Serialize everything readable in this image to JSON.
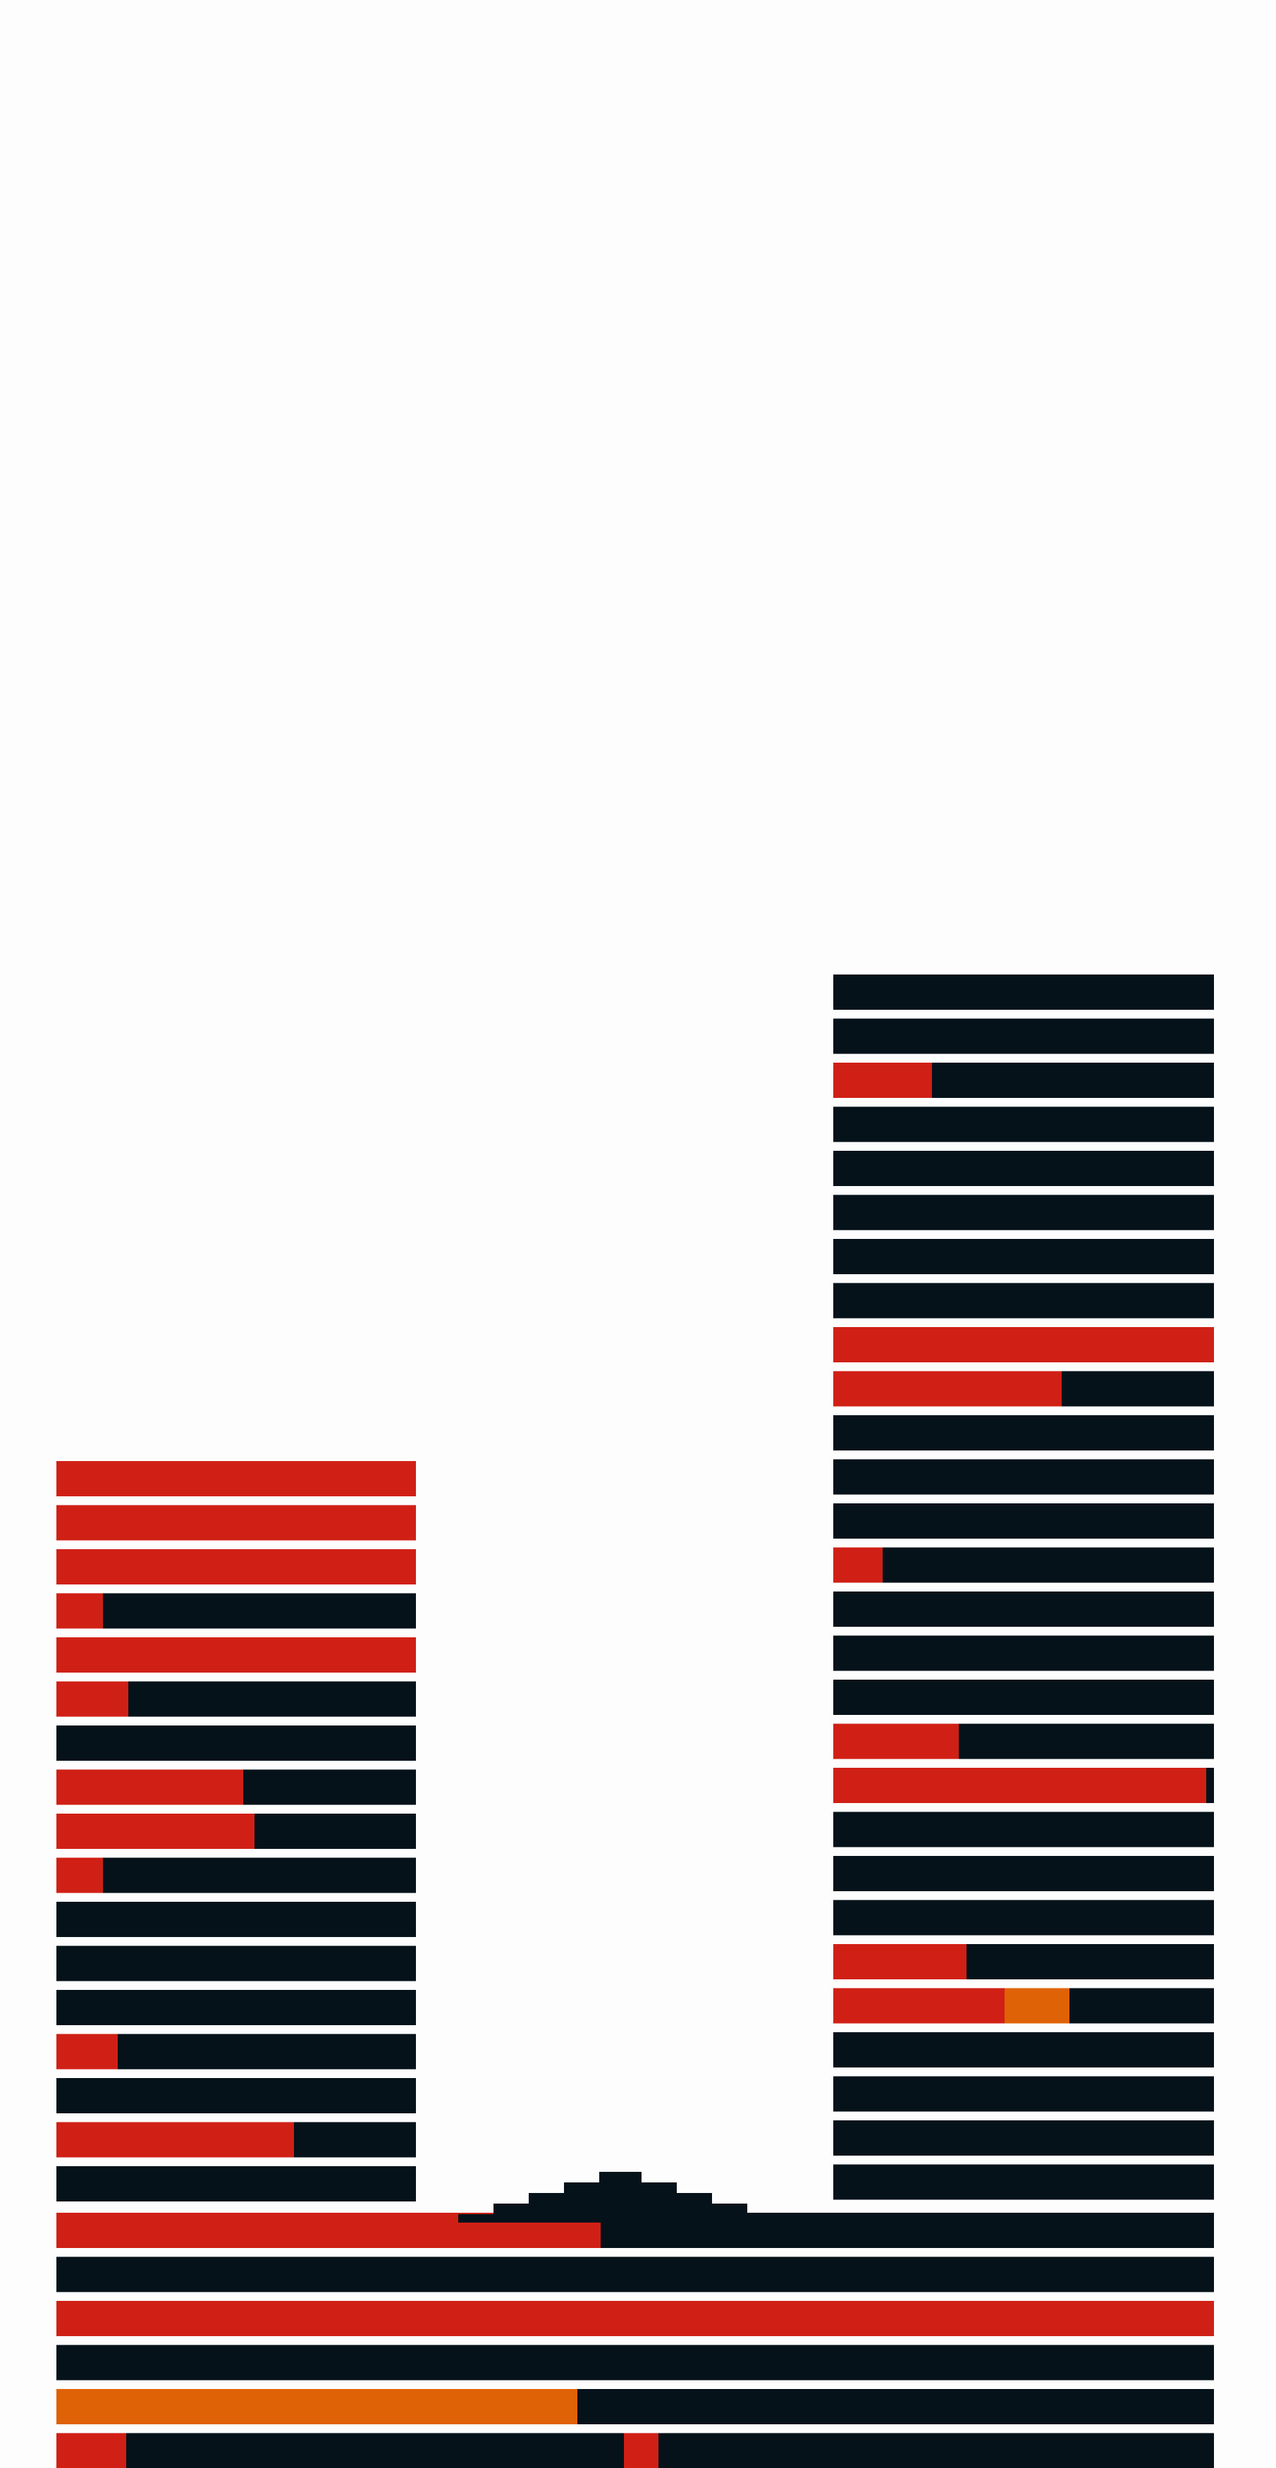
{
  "colors": {
    "background": "#fdfdfd",
    "bar": "#05121a",
    "red": "#d02016",
    "orange": "#e06206"
  },
  "left_tower": {
    "rows": [
      {
        "red": 1.0
      },
      {
        "red": 1.0
      },
      {
        "red": 1.0
      },
      {
        "red": 0.13
      },
      {
        "red": 1.0
      },
      {
        "red": 0.2
      },
      {
        "red": 0
      },
      {
        "red": 0.52
      },
      {
        "red": 0.55
      },
      {
        "red": 0.13
      },
      {
        "red": 0
      },
      {
        "red": 0
      },
      {
        "red": 0
      },
      {
        "red": 0.17
      },
      {
        "red": 0
      },
      {
        "red": 0.66
      },
      {
        "red": 0
      }
    ]
  },
  "right_tower": {
    "rows": [
      {
        "red": 0
      },
      {
        "red": 0
      },
      {
        "red": 0.26
      },
      {
        "red": 0
      },
      {
        "red": 0
      },
      {
        "red": 0
      },
      {
        "red": 0
      },
      {
        "red": 0
      },
      {
        "red": 1.0
      },
      {
        "red": 0.6
      },
      {
        "red": 0
      },
      {
        "red": 0
      },
      {
        "red": 0
      },
      {
        "red": 0.13
      },
      {
        "red": 0
      },
      {
        "red": 0
      },
      {
        "red": 0
      },
      {
        "red": 0.33
      },
      {
        "red": 0.98
      },
      {
        "red": 0
      },
      {
        "red": 0
      },
      {
        "red": 0
      },
      {
        "red": 0.35
      },
      {
        "red": 0.45,
        "orange": 0.17
      },
      {
        "red": 0
      },
      {
        "red": 0
      },
      {
        "red": 0
      },
      {
        "red": 0
      }
    ]
  },
  "base": {
    "rows": [
      {
        "red": 0.47
      },
      {
        "red": 0
      },
      {
        "red": 1.0
      },
      {
        "red": 0
      },
      {
        "orange": 0.45
      },
      {
        "red": 0.06,
        "red2": [
          0.49,
          0.52
        ]
      }
    ]
  }
}
